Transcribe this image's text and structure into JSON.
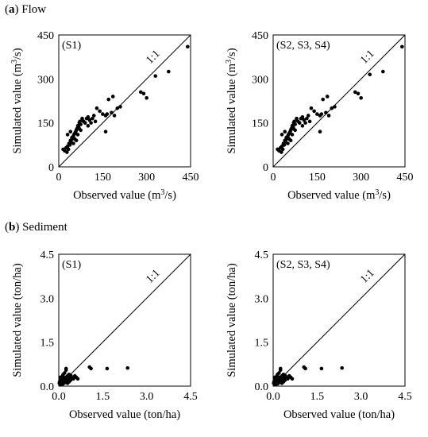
{
  "sections": [
    {
      "letter": "a",
      "title": "Flow"
    },
    {
      "letter": "b",
      "title": "Sediment"
    }
  ],
  "chart_data": [
    {
      "type": "scatter",
      "scenario_label": "(S1)",
      "reference_line_label": "1:1",
      "xlabel_prefix": "Observed value (m",
      "xlabel_sup": "3",
      "xlabel_suffix": "/s)",
      "ylabel_prefix": "Simulated value (m",
      "ylabel_sup": "3",
      "ylabel_suffix": "/s)",
      "xlim": [
        0,
        450
      ],
      "ylim": [
        0,
        450
      ],
      "xticks": [
        "0",
        "150",
        "300",
        "450"
      ],
      "yticks": [
        "0",
        "150",
        "300",
        "450"
      ],
      "tick_values": [
        0,
        150,
        300,
        450
      ],
      "x": [
        15,
        20,
        25,
        28,
        30,
        33,
        35,
        38,
        40,
        42,
        45,
        48,
        50,
        52,
        55,
        58,
        60,
        62,
        65,
        68,
        70,
        72,
        75,
        80,
        85,
        90,
        95,
        100,
        105,
        110,
        115,
        120,
        125,
        130,
        140,
        150,
        160,
        165,
        170,
        180,
        185,
        190,
        200,
        210,
        30,
        40,
        50,
        60,
        70,
        80,
        90,
        100,
        45,
        55,
        65,
        75,
        35,
        160,
        280,
        290,
        300,
        330,
        375,
        440
      ],
      "y": [
        60,
        55,
        65,
        50,
        70,
        60,
        80,
        75,
        90,
        85,
        95,
        100,
        105,
        110,
        115,
        120,
        125,
        130,
        140,
        135,
        150,
        155,
        145,
        160,
        155,
        150,
        165,
        170,
        160,
        150,
        165,
        175,
        155,
        200,
        190,
        180,
        175,
        180,
        230,
        185,
        240,
        175,
        200,
        205,
        110,
        120,
        80,
        90,
        130,
        165,
        150,
        140,
        100,
        95,
        110,
        125,
        75,
        120,
        255,
        250,
        235,
        310,
        325,
        410
      ]
    },
    {
      "type": "scatter",
      "scenario_label": "(S2, S3, S4)",
      "reference_line_label": "1:1",
      "xlabel_prefix": "Observed value (m",
      "xlabel_sup": "3",
      "xlabel_suffix": "/s)",
      "ylabel_prefix": "Simulated value (m",
      "ylabel_sup": "3",
      "ylabel_suffix": "/s)",
      "xlim": [
        0,
        450
      ],
      "ylim": [
        0,
        450
      ],
      "xticks": [
        "0",
        "150",
        "300",
        "450"
      ],
      "yticks": [
        "0",
        "150",
        "300",
        "450"
      ],
      "tick_values": [
        0,
        150,
        300,
        450
      ],
      "x": [
        15,
        20,
        25,
        28,
        30,
        33,
        35,
        38,
        40,
        42,
        45,
        48,
        50,
        52,
        55,
        58,
        60,
        62,
        65,
        68,
        70,
        72,
        75,
        80,
        85,
        90,
        95,
        100,
        105,
        110,
        115,
        120,
        125,
        130,
        140,
        150,
        160,
        165,
        170,
        180,
        185,
        190,
        200,
        210,
        30,
        40,
        50,
        60,
        70,
        80,
        90,
        100,
        45,
        55,
        65,
        75,
        35,
        160,
        280,
        290,
        300,
        330,
        375,
        440
      ],
      "y": [
        60,
        55,
        65,
        50,
        70,
        60,
        80,
        75,
        90,
        85,
        95,
        100,
        105,
        110,
        115,
        120,
        125,
        130,
        140,
        135,
        150,
        155,
        145,
        160,
        155,
        150,
        165,
        170,
        160,
        150,
        165,
        175,
        155,
        200,
        190,
        180,
        175,
        180,
        230,
        185,
        240,
        175,
        200,
        205,
        110,
        120,
        80,
        90,
        130,
        165,
        150,
        140,
        100,
        95,
        110,
        125,
        75,
        120,
        255,
        250,
        235,
        315,
        325,
        410
      ]
    },
    {
      "type": "scatter",
      "scenario_label": "(S1)",
      "reference_line_label": "1:1",
      "xlabel_prefix": "Observed value (ton/ha)",
      "xlabel_sup": "",
      "xlabel_suffix": "",
      "ylabel_prefix": "Simulated value (ton/ha)",
      "ylabel_sup": "",
      "ylabel_suffix": "",
      "xlim": [
        0,
        4.5
      ],
      "ylim": [
        0,
        4.5
      ],
      "xticks": [
        "0.0",
        "1.5",
        "3.0",
        "4.5"
      ],
      "yticks": [
        "0.0",
        "1.5",
        "3.0",
        "4.5"
      ],
      "tick_values": [
        0,
        1.5,
        3.0,
        4.5
      ],
      "x": [
        0.02,
        0.03,
        0.05,
        0.05,
        0.07,
        0.08,
        0.1,
        0.1,
        0.12,
        0.13,
        0.15,
        0.15,
        0.17,
        0.18,
        0.2,
        0.2,
        0.22,
        0.25,
        0.25,
        0.28,
        0.3,
        0.3,
        0.33,
        0.35,
        0.38,
        0.4,
        0.42,
        0.45,
        0.5,
        0.55,
        0.6,
        0.65,
        0.25,
        0.35,
        0.15,
        0.08,
        0.05,
        0.2,
        1.05,
        1.1,
        1.65,
        2.35
      ],
      "y": [
        0.1,
        0.15,
        0.05,
        0.2,
        0.12,
        0.25,
        0.1,
        0.3,
        0.18,
        0.35,
        0.08,
        0.4,
        0.2,
        0.25,
        0.15,
        0.45,
        0.3,
        0.2,
        0.55,
        0.3,
        0.1,
        0.35,
        0.25,
        0.15,
        0.3,
        0.2,
        0.35,
        0.28,
        0.25,
        0.35,
        0.3,
        0.25,
        0.6,
        0.4,
        0.22,
        0.05,
        0.3,
        0.12,
        0.65,
        0.6,
        0.6,
        0.62
      ]
    },
    {
      "type": "scatter",
      "scenario_label": "(S2, S3, S4)",
      "reference_line_label": "1:1",
      "xlabel_prefix": "Observed value (ton/ha)",
      "xlabel_sup": "",
      "xlabel_suffix": "",
      "ylabel_prefix": "Simulated value (ton/ha)",
      "ylabel_sup": "",
      "ylabel_suffix": "",
      "xlim": [
        0,
        4.5
      ],
      "ylim": [
        0,
        4.5
      ],
      "xticks": [
        "0.0",
        "1.5",
        "3.0",
        "4.5"
      ],
      "yticks": [
        "0.0",
        "1.5",
        "3.0",
        "4.5"
      ],
      "tick_values": [
        0,
        1.5,
        3.0,
        4.5
      ],
      "x": [
        0.02,
        0.03,
        0.05,
        0.05,
        0.07,
        0.08,
        0.1,
        0.1,
        0.12,
        0.13,
        0.15,
        0.15,
        0.17,
        0.18,
        0.2,
        0.2,
        0.22,
        0.25,
        0.25,
        0.28,
        0.3,
        0.3,
        0.33,
        0.35,
        0.38,
        0.4,
        0.42,
        0.45,
        0.5,
        0.55,
        0.6,
        0.65,
        0.25,
        0.35,
        0.15,
        0.08,
        0.05,
        0.2,
        1.05,
        1.1,
        1.65,
        2.35
      ],
      "y": [
        0.1,
        0.15,
        0.05,
        0.2,
        0.12,
        0.25,
        0.1,
        0.3,
        0.18,
        0.35,
        0.08,
        0.4,
        0.2,
        0.25,
        0.15,
        0.45,
        0.3,
        0.2,
        0.55,
        0.3,
        0.1,
        0.35,
        0.25,
        0.15,
        0.3,
        0.2,
        0.35,
        0.28,
        0.25,
        0.35,
        0.3,
        0.25,
        0.6,
        0.4,
        0.22,
        0.05,
        0.3,
        0.12,
        0.65,
        0.6,
        0.6,
        0.62
      ]
    }
  ]
}
